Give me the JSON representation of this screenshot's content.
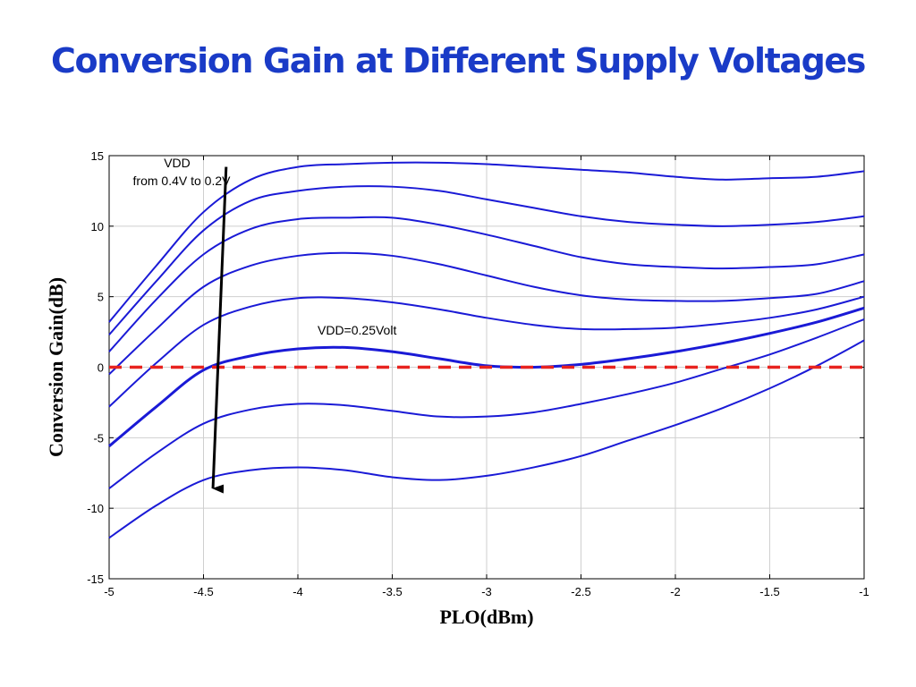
{
  "title": "Conversion Gain at Different Supply Voltages",
  "chart_data": {
    "type": "line",
    "title": "Conversion Gain at Different Supply Voltages",
    "xlabel": "PLO(dBm)",
    "ylabel": "Conversion Gain(dB)",
    "xlim": [
      -5,
      -1
    ],
    "ylim": [
      -15,
      15
    ],
    "xticks": [
      -5,
      -4.5,
      -4,
      -3.5,
      -3,
      -2.5,
      -2,
      -1.5,
      -1
    ],
    "yticks": [
      -15,
      -10,
      -5,
      0,
      5,
      10,
      15
    ],
    "grid": true,
    "series_color": "#1a1ad6",
    "series": [
      {
        "points": [
          [
            -5,
            3.2
          ],
          [
            -4.75,
            7.2
          ],
          [
            -4.5,
            11.0
          ],
          [
            -4.25,
            13.3
          ],
          [
            -4.0,
            14.2
          ],
          [
            -3.75,
            14.4
          ],
          [
            -3.5,
            14.5
          ],
          [
            -3.25,
            14.5
          ],
          [
            -3.0,
            14.4
          ],
          [
            -2.75,
            14.2
          ],
          [
            -2.5,
            14.0
          ],
          [
            -2.25,
            13.8
          ],
          [
            -2.0,
            13.5
          ],
          [
            -1.75,
            13.3
          ],
          [
            -1.5,
            13.4
          ],
          [
            -1.25,
            13.5
          ],
          [
            -1,
            13.9
          ]
        ]
      },
      {
        "points": [
          [
            -5,
            2.3
          ],
          [
            -4.75,
            6.1
          ],
          [
            -4.5,
            9.7
          ],
          [
            -4.25,
            11.8
          ],
          [
            -4.0,
            12.5
          ],
          [
            -3.75,
            12.8
          ],
          [
            -3.5,
            12.8
          ],
          [
            -3.25,
            12.5
          ],
          [
            -3.0,
            11.9
          ],
          [
            -2.75,
            11.3
          ],
          [
            -2.5,
            10.7
          ],
          [
            -2.25,
            10.3
          ],
          [
            -2.0,
            10.1
          ],
          [
            -1.75,
            10.0
          ],
          [
            -1.5,
            10.1
          ],
          [
            -1.25,
            10.3
          ],
          [
            -1,
            10.7
          ]
        ]
      },
      {
        "points": [
          [
            -5,
            1.1
          ],
          [
            -4.75,
            4.8
          ],
          [
            -4.5,
            8.0
          ],
          [
            -4.25,
            9.8
          ],
          [
            -4.0,
            10.5
          ],
          [
            -3.75,
            10.6
          ],
          [
            -3.5,
            10.6
          ],
          [
            -3.25,
            10.1
          ],
          [
            -3.0,
            9.4
          ],
          [
            -2.75,
            8.6
          ],
          [
            -2.5,
            7.8
          ],
          [
            -2.25,
            7.3
          ],
          [
            -2.0,
            7.1
          ],
          [
            -1.75,
            7.0
          ],
          [
            -1.5,
            7.1
          ],
          [
            -1.25,
            7.3
          ],
          [
            -1,
            8.0
          ]
        ]
      },
      {
        "points": [
          [
            -5,
            -0.5
          ],
          [
            -4.75,
            2.7
          ],
          [
            -4.5,
            5.7
          ],
          [
            -4.25,
            7.2
          ],
          [
            -4.0,
            7.9
          ],
          [
            -3.75,
            8.1
          ],
          [
            -3.5,
            7.9
          ],
          [
            -3.25,
            7.3
          ],
          [
            -3.0,
            6.5
          ],
          [
            -2.75,
            5.7
          ],
          [
            -2.5,
            5.1
          ],
          [
            -2.25,
            4.8
          ],
          [
            -2.0,
            4.7
          ],
          [
            -1.75,
            4.7
          ],
          [
            -1.5,
            4.9
          ],
          [
            -1.25,
            5.2
          ],
          [
            -1,
            6.1
          ]
        ]
      },
      {
        "points": [
          [
            -5,
            -2.8
          ],
          [
            -4.75,
            0.3
          ],
          [
            -4.5,
            3.0
          ],
          [
            -4.25,
            4.3
          ],
          [
            -4.0,
            4.9
          ],
          [
            -3.75,
            4.9
          ],
          [
            -3.5,
            4.6
          ],
          [
            -3.25,
            4.1
          ],
          [
            -3.0,
            3.5
          ],
          [
            -2.75,
            3.0
          ],
          [
            -2.5,
            2.7
          ],
          [
            -2.25,
            2.7
          ],
          [
            -2.0,
            2.8
          ],
          [
            -1.75,
            3.1
          ],
          [
            -1.5,
            3.5
          ],
          [
            -1.25,
            4.1
          ],
          [
            -1,
            5.0
          ]
        ]
      },
      {
        "points": [
          [
            -5,
            -5.6
          ],
          [
            -4.75,
            -2.8
          ],
          [
            -4.5,
            -0.2
          ],
          [
            -4.25,
            0.8
          ],
          [
            -4.0,
            1.3
          ],
          [
            -3.75,
            1.4
          ],
          [
            -3.5,
            1.1
          ],
          [
            -3.25,
            0.6
          ],
          [
            -3.0,
            0.1
          ],
          [
            -2.75,
            0.0
          ],
          [
            -2.5,
            0.2
          ],
          [
            -2.25,
            0.6
          ],
          [
            -2.0,
            1.1
          ],
          [
            -1.75,
            1.7
          ],
          [
            -1.5,
            2.4
          ],
          [
            -1.25,
            3.2
          ],
          [
            -1,
            4.2
          ]
        ],
        "width": 3
      },
      {
        "points": [
          [
            -5,
            -8.6
          ],
          [
            -4.75,
            -6.1
          ],
          [
            -4.5,
            -4.0
          ],
          [
            -4.25,
            -3.0
          ],
          [
            -4.0,
            -2.6
          ],
          [
            -3.75,
            -2.7
          ],
          [
            -3.5,
            -3.1
          ],
          [
            -3.25,
            -3.5
          ],
          [
            -3.0,
            -3.5
          ],
          [
            -2.75,
            -3.2
          ],
          [
            -2.5,
            -2.6
          ],
          [
            -2.25,
            -1.9
          ],
          [
            -2.0,
            -1.1
          ],
          [
            -1.75,
            -0.1
          ],
          [
            -1.5,
            0.9
          ],
          [
            -1.25,
            2.1
          ],
          [
            -1,
            3.4
          ]
        ]
      },
      {
        "points": [
          [
            -5,
            -12.1
          ],
          [
            -4.75,
            -9.8
          ],
          [
            -4.5,
            -8.0
          ],
          [
            -4.25,
            -7.3
          ],
          [
            -4.0,
            -7.1
          ],
          [
            -3.75,
            -7.3
          ],
          [
            -3.5,
            -7.8
          ],
          [
            -3.25,
            -8.0
          ],
          [
            -3.0,
            -7.7
          ],
          [
            -2.75,
            -7.1
          ],
          [
            -2.5,
            -6.3
          ],
          [
            -2.25,
            -5.2
          ],
          [
            -2.0,
            -4.1
          ],
          [
            -1.75,
            -2.9
          ],
          [
            -1.5,
            -1.5
          ],
          [
            -1.25,
            0.1
          ],
          [
            -1,
            1.9
          ]
        ]
      }
    ],
    "reference_line": {
      "y": 0,
      "color": "#e8231f",
      "style": "dashed"
    },
    "annotations": {
      "vdd_line1": "VDD",
      "vdd_line2": "from 0.4V to 0.2V",
      "vdd_mid": "VDD=0.25Volt"
    },
    "arrow": {
      "from": [
        -4.38,
        14.2
      ],
      "to": [
        -4.45,
        -8.6
      ],
      "color": "#000000"
    }
  }
}
